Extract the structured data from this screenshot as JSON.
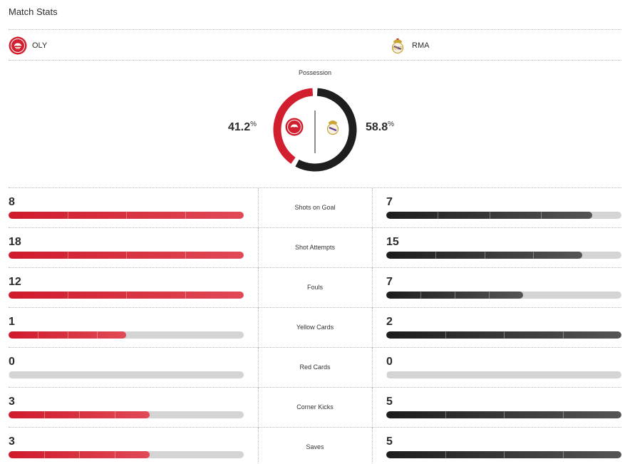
{
  "header": {
    "title": "Match Stats"
  },
  "teams": {
    "home": {
      "abbr": "OLY",
      "color": "#d21f2f"
    },
    "away": {
      "abbr": "RMA",
      "color": "#1e1e1e"
    }
  },
  "possession": {
    "label": "Possession",
    "home_value": "41.2",
    "away_value": "58.8",
    "unit": "%"
  },
  "stats": [
    {
      "label": "Shots on Goal",
      "home": "8",
      "away": "7",
      "home_fill": 1.0,
      "away_fill": 0.875
    },
    {
      "label": "Shot Attempts",
      "home": "18",
      "away": "15",
      "home_fill": 1.0,
      "away_fill": 0.833
    },
    {
      "label": "Fouls",
      "home": "12",
      "away": "7",
      "home_fill": 1.0,
      "away_fill": 0.583
    },
    {
      "label": "Yellow Cards",
      "home": "1",
      "away": "2",
      "home_fill": 0.5,
      "away_fill": 1.0
    },
    {
      "label": "Red Cards",
      "home": "0",
      "away": "0",
      "home_fill": 0,
      "away_fill": 0
    },
    {
      "label": "Corner Kicks",
      "home": "3",
      "away": "5",
      "home_fill": 0.6,
      "away_fill": 1.0
    },
    {
      "label": "Saves",
      "home": "3",
      "away": "5",
      "home_fill": 0.6,
      "away_fill": 1.0
    }
  ]
}
